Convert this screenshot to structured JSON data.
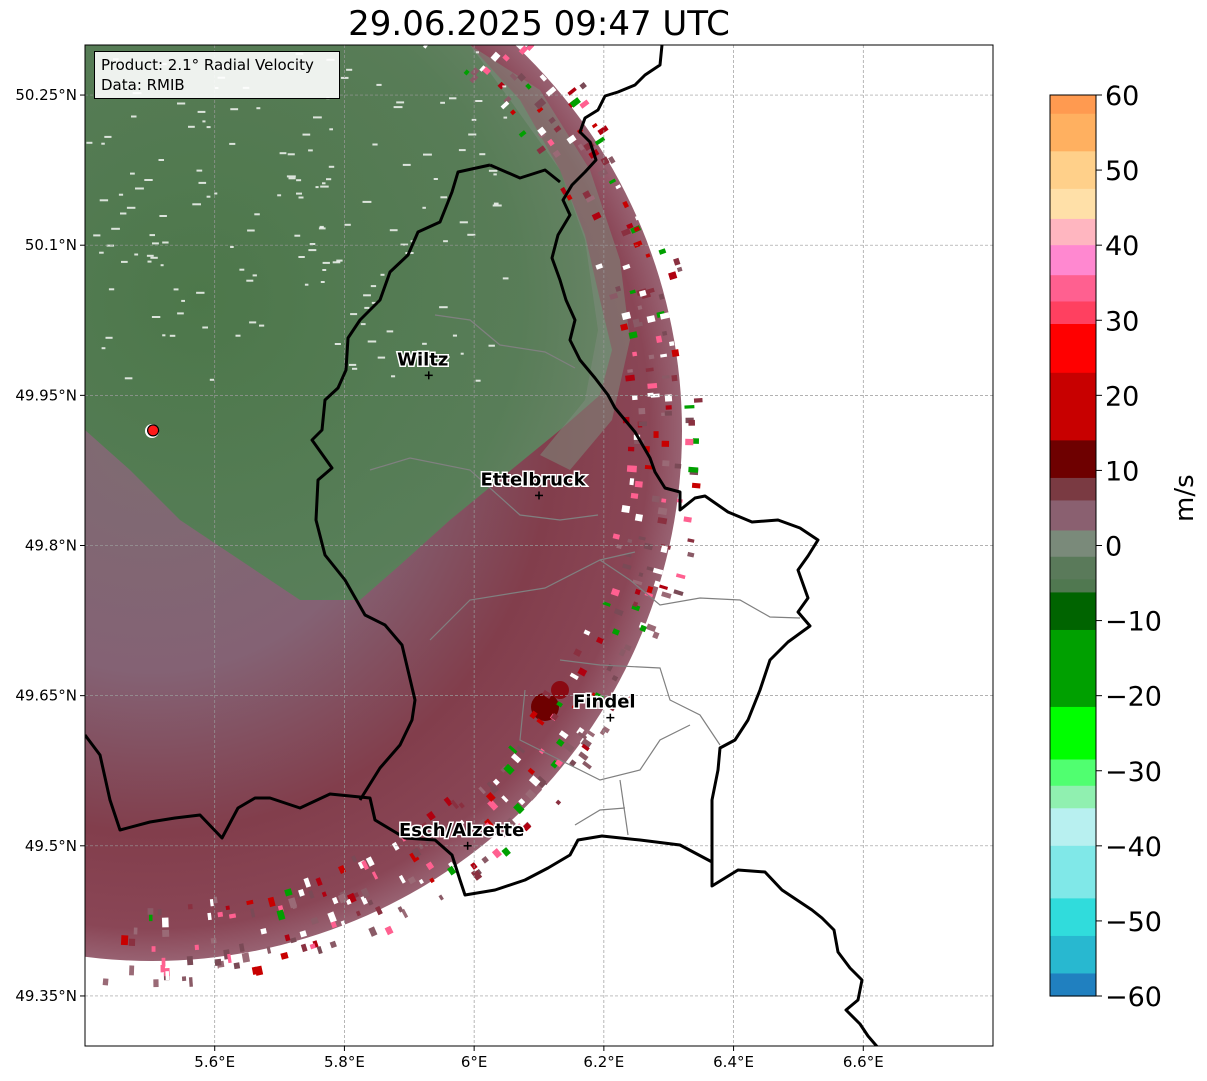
{
  "title": "29.06.2025 09:47 UTC",
  "info": {
    "product": "Product: 2.1° Radial Velocity",
    "source": "Data: RMIB"
  },
  "map": {
    "lon_range": [
      5.4,
      6.8
    ],
    "lat_range": [
      49.3,
      50.3
    ],
    "x_ticks": [
      {
        "value": 5.6,
        "label": "5.6°E"
      },
      {
        "value": 5.8,
        "label": "5.8°E"
      },
      {
        "value": 6.0,
        "label": "6°E"
      },
      {
        "value": 6.2,
        "label": "6.2°E"
      },
      {
        "value": 6.4,
        "label": "6.4°E"
      },
      {
        "value": 6.6,
        "label": "6.6°E"
      }
    ],
    "y_ticks": [
      {
        "value": 49.35,
        "label": "49.35°N"
      },
      {
        "value": 49.5,
        "label": "49.5°N"
      },
      {
        "value": 49.65,
        "label": "49.65°N"
      },
      {
        "value": 49.8,
        "label": "49.8°N"
      },
      {
        "value": 49.95,
        "label": "49.95°N"
      },
      {
        "value": 50.1,
        "label": "50.1°N"
      },
      {
        "value": 50.25,
        "label": "50.25°N"
      }
    ],
    "cities": [
      {
        "name": "Wiltz",
        "lon": 5.93,
        "lat": 49.97
      },
      {
        "name": "Ettelbruck",
        "lon": 6.1,
        "lat": 49.85
      },
      {
        "name": "Findel",
        "lon": 6.21,
        "lat": 49.628
      },
      {
        "name": "Esch/Alzette",
        "lon": 5.99,
        "lat": 49.5
      }
    ],
    "radar_site": {
      "lon": 5.505,
      "lat": 49.915,
      "color": "#ff1a1a"
    }
  },
  "colorbar": {
    "label": "m/s",
    "min": -60,
    "max": 60,
    "ticks": [
      60,
      50,
      40,
      30,
      20,
      10,
      0,
      -10,
      -20,
      -30,
      -40,
      -50,
      -60
    ],
    "tick_labels": [
      "60",
      "50",
      "40",
      "30",
      "20",
      "10",
      "0",
      "−10",
      "−20",
      "−30",
      "−40",
      "−50",
      "−60"
    ],
    "stops": [
      {
        "v": 60,
        "c": "#ff9a50"
      },
      {
        "v": 55,
        "c": "#ffb060"
      },
      {
        "v": 50,
        "c": "#ffd08a"
      },
      {
        "v": 45,
        "c": "#ffe0a8"
      },
      {
        "v": 42,
        "c": "#ffb6c0"
      },
      {
        "v": 38,
        "c": "#ff88d0"
      },
      {
        "v": 34,
        "c": "#ff6090"
      },
      {
        "v": 31,
        "c": "#ff4060"
      },
      {
        "v": 28,
        "c": "#ff0000"
      },
      {
        "v": 18,
        "c": "#c80000"
      },
      {
        "v": 10,
        "c": "#6e0000"
      },
      {
        "v": 8,
        "c": "#7a3a42"
      },
      {
        "v": 4,
        "c": "#8a6070"
      },
      {
        "v": 0,
        "c": "#7a8a7a"
      },
      {
        "v": -3,
        "c": "#5a7a5a"
      },
      {
        "v": -6,
        "c": "#507850"
      },
      {
        "v": -6.5,
        "c": "#006400"
      },
      {
        "v": -16,
        "c": "#00a000"
      },
      {
        "v": -27,
        "c": "#00ff00"
      },
      {
        "v": -30,
        "c": "#50ff70"
      },
      {
        "v": -34,
        "c": "#90f0b0"
      },
      {
        "v": -36,
        "c": "#b8f0f0"
      },
      {
        "v": -44,
        "c": "#80e8e8"
      },
      {
        "v": -50,
        "c": "#30dcdc"
      },
      {
        "v": -54,
        "c": "#28b8d0"
      },
      {
        "v": -60,
        "c": "#2080c0"
      }
    ]
  }
}
